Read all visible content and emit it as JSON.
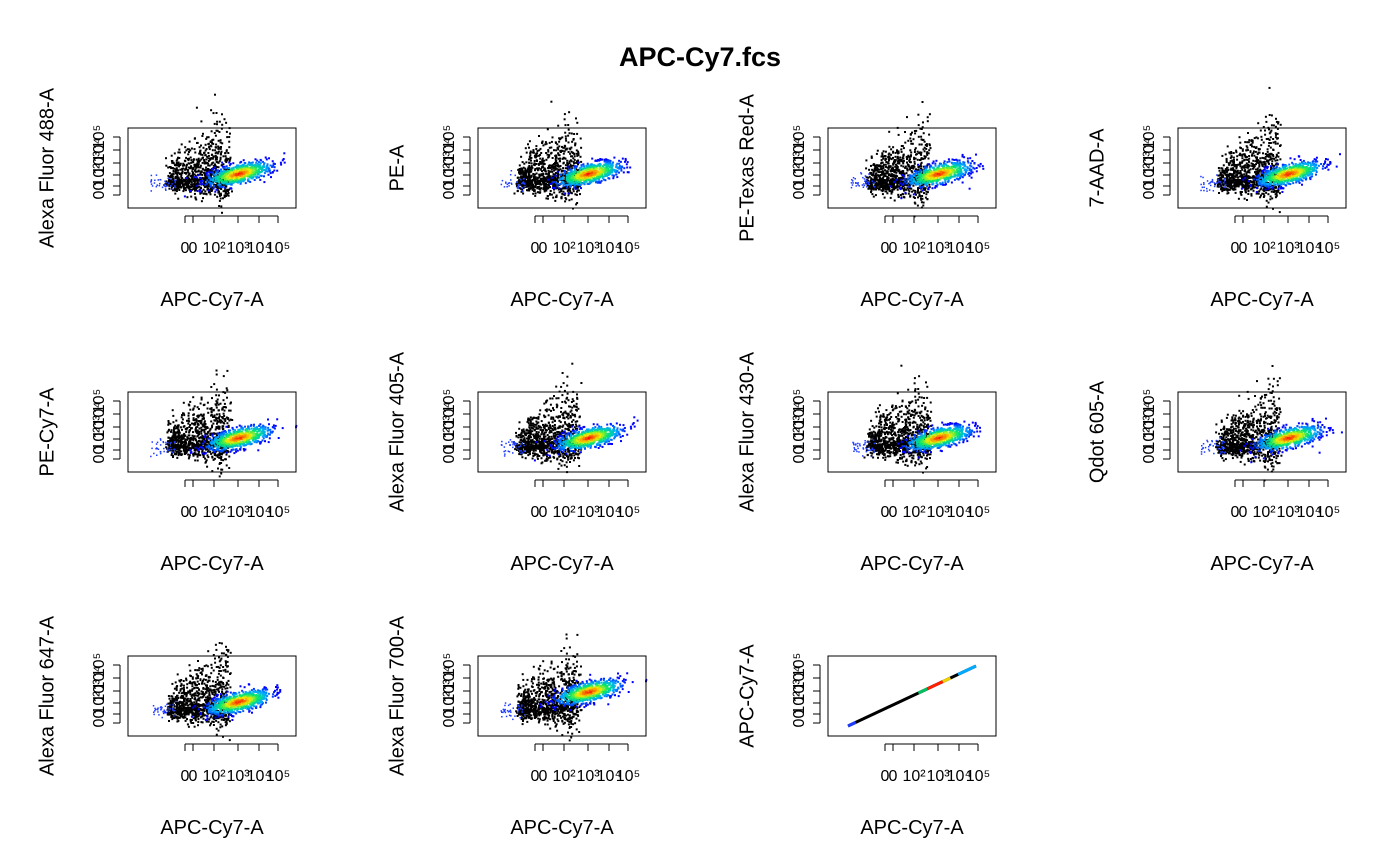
{
  "title": "APC-Cy7.fcs",
  "chart_data": [
    {
      "type": "scatter",
      "subtype": "density",
      "xlabel": "APC-Cy7-A",
      "ylabel": "Alexa Fluor 488-A",
      "x_tick_labels": [
        "0",
        "0",
        "10²",
        "10³",
        "10⁴",
        "10⁵"
      ],
      "y_tick_labels": [
        "0",
        "0",
        "10²",
        "10³",
        "10⁴",
        "10⁵"
      ],
      "x_scale": "logicle",
      "y_scale": "logicle",
      "negative_cluster": {
        "x": [
          10,
          3000
        ],
        "y": [
          -150,
          400
        ],
        "color": "#000000"
      },
      "positive_cluster": {
        "x_center": 8000,
        "y_center": 150,
        "color_scale": [
          "#0000ff",
          "#00aaff",
          "#00ff66",
          "#ffff00",
          "#ff0000"
        ]
      }
    },
    {
      "type": "scatter",
      "subtype": "density",
      "xlabel": "APC-Cy7-A",
      "ylabel": "PE-A",
      "x_tick_labels": [
        "0",
        "0",
        "10²",
        "10³",
        "10⁴",
        "10⁵"
      ],
      "y_tick_labels": [
        "0",
        "0",
        "10²",
        "10³",
        "10⁴",
        "10⁵"
      ],
      "x_scale": "logicle",
      "y_scale": "logicle",
      "negative_cluster": {
        "x": [
          10,
          3000
        ],
        "y": [
          -150,
          400
        ],
        "color": "#000000"
      },
      "positive_cluster": {
        "x_center": 8000,
        "y_center": 150,
        "color_scale": [
          "#0000ff",
          "#00aaff",
          "#00ff66",
          "#ffff00",
          "#ff0000"
        ]
      }
    },
    {
      "type": "scatter",
      "subtype": "density",
      "xlabel": "APC-Cy7-A",
      "ylabel": "PE-Texas Red-A",
      "x_tick_labels": [
        "0",
        "0",
        "10²",
        "10³",
        "10⁴",
        "10⁵"
      ],
      "y_tick_labels": [
        "0",
        "0",
        "10²",
        "10³",
        "10⁴",
        "10⁵"
      ],
      "x_scale": "logicle",
      "y_scale": "logicle",
      "negative_cluster": {
        "x": [
          10,
          3000
        ],
        "y": [
          -150,
          400
        ],
        "color": "#000000"
      },
      "positive_cluster": {
        "x_center": 8000,
        "y_center": 120,
        "color_scale": [
          "#0000ff",
          "#00aaff",
          "#00ff66",
          "#ffff00",
          "#ff0000"
        ]
      }
    },
    {
      "type": "scatter",
      "subtype": "density",
      "xlabel": "APC-Cy7-A",
      "ylabel": "7-AAD-A",
      "x_tick_labels": [
        "0",
        "0",
        "10²",
        "10³",
        "10⁴",
        "10⁵"
      ],
      "y_tick_labels": [
        "0",
        "0",
        "10²",
        "10³",
        "10⁴",
        "10⁵"
      ],
      "x_scale": "logicle",
      "y_scale": "logicle",
      "negative_cluster": {
        "x": [
          10,
          3000
        ],
        "y": [
          -150,
          500
        ],
        "color": "#000000"
      },
      "positive_cluster": {
        "x_center": 8000,
        "y_center": 150,
        "color_scale": [
          "#0000ff",
          "#00aaff",
          "#00ff66",
          "#ffff00",
          "#ff0000"
        ]
      }
    },
    {
      "type": "scatter",
      "subtype": "density",
      "xlabel": "APC-Cy7-A",
      "ylabel": "PE-Cy7-A",
      "x_tick_labels": [
        "0",
        "0",
        "10²",
        "10³",
        "10⁴",
        "10⁵"
      ],
      "y_tick_labels": [
        "0",
        "0",
        "10²",
        "10³",
        "10⁴",
        "10⁵"
      ],
      "x_scale": "logicle",
      "y_scale": "logicle",
      "negative_cluster": {
        "x": [
          10,
          3000
        ],
        "y": [
          -150,
          400
        ],
        "color": "#000000"
      },
      "positive_cluster": {
        "x_center": 8000,
        "y_center": 150,
        "color_scale": [
          "#0000ff",
          "#00aaff",
          "#00ff66",
          "#ffff00",
          "#ff0000"
        ]
      }
    },
    {
      "type": "scatter",
      "subtype": "density",
      "xlabel": "APC-Cy7-A",
      "ylabel": "Alexa Fluor 405-A",
      "x_tick_labels": [
        "0",
        "0",
        "10²",
        "10³",
        "10⁴",
        "10⁵"
      ],
      "y_tick_labels": [
        "0",
        "0",
        "10²",
        "10³",
        "10⁴",
        "10⁵"
      ],
      "x_scale": "logicle",
      "y_scale": "logicle",
      "negative_cluster": {
        "x": [
          10,
          3000
        ],
        "y": [
          -150,
          500
        ],
        "color": "#000000"
      },
      "positive_cluster": {
        "x_center": 8000,
        "y_center": 150,
        "color_scale": [
          "#0000ff",
          "#00aaff",
          "#00ff66",
          "#ffff00",
          "#ff0000"
        ]
      }
    },
    {
      "type": "scatter",
      "subtype": "density",
      "xlabel": "APC-Cy7-A",
      "ylabel": "Alexa Fluor 430-A",
      "x_tick_labels": [
        "0",
        "0",
        "10²",
        "10³",
        "10⁴",
        "10⁵"
      ],
      "y_tick_labels": [
        "0",
        "0",
        "10²",
        "10³",
        "10⁴",
        "10⁵"
      ],
      "x_scale": "logicle",
      "y_scale": "logicle",
      "negative_cluster": {
        "x": [
          10,
          3000
        ],
        "y": [
          -150,
          400
        ],
        "color": "#000000"
      },
      "positive_cluster": {
        "x_center": 8000,
        "y_center": 120,
        "color_scale": [
          "#0000ff",
          "#00aaff",
          "#00ff66",
          "#ffff00",
          "#ff0000"
        ]
      }
    },
    {
      "type": "scatter",
      "subtype": "density",
      "xlabel": "APC-Cy7-A",
      "ylabel": "Qdot 605-A",
      "x_tick_labels": [
        "0",
        "0",
        "10²",
        "10³",
        "10⁴",
        "10⁵"
      ],
      "y_tick_labels": [
        "0",
        "0",
        "10²",
        "10³",
        "10⁴",
        "10⁵"
      ],
      "x_scale": "logicle",
      "y_scale": "logicle",
      "negative_cluster": {
        "x": [
          10,
          3000
        ],
        "y": [
          -150,
          500
        ],
        "color": "#000000"
      },
      "positive_cluster": {
        "x_center": 8000,
        "y_center": 200,
        "color_scale": [
          "#0000ff",
          "#00aaff",
          "#00ff66",
          "#ffff00",
          "#ff0000"
        ]
      }
    },
    {
      "type": "scatter",
      "subtype": "density",
      "xlabel": "APC-Cy7-A",
      "ylabel": "Alexa Fluor 647-A",
      "x_tick_labels": [
        "0",
        "0",
        "10²",
        "10³",
        "10⁴",
        "10⁵"
      ],
      "y_tick_labels": [
        "0",
        "0",
        "10²",
        "10³",
        "10⁴",
        "10⁵"
      ],
      "x_scale": "logicle",
      "y_scale": "logicle",
      "negative_cluster": {
        "x": [
          10,
          3000
        ],
        "y": [
          -150,
          400
        ],
        "color": "#000000"
      },
      "positive_cluster": {
        "x_center": 8000,
        "y_center": 200,
        "color_scale": [
          "#0000ff",
          "#00aaff",
          "#00ff66",
          "#ffff00",
          "#ff0000"
        ]
      }
    },
    {
      "type": "scatter",
      "subtype": "density",
      "xlabel": "APC-Cy7-A",
      "ylabel": "Alexa Fluor 700-A",
      "x_tick_labels": [
        "0",
        "0",
        "10²",
        "10³",
        "10⁴",
        "10⁵"
      ],
      "y_tick_labels": [
        "0",
        "0",
        "10²",
        "10³",
        "10⁴",
        "10⁵"
      ],
      "x_scale": "logicle",
      "y_scale": "logicle",
      "negative_cluster": {
        "x": [
          10,
          3000
        ],
        "y": [
          -150,
          400
        ],
        "color": "#000000"
      },
      "positive_cluster": {
        "x_center": 12000,
        "y_center": 1500,
        "color_scale": [
          "#0000ff",
          "#00aaff",
          "#00ff66",
          "#ffff00",
          "#ff0000"
        ]
      }
    },
    {
      "type": "scatter",
      "subtype": "density",
      "xlabel": "APC-Cy7-A",
      "ylabel": "APC-Cy7-A",
      "x_tick_labels": [
        "0",
        "0",
        "10²",
        "10³",
        "10⁴",
        "10⁵"
      ],
      "y_tick_labels": [
        "0",
        "0",
        "10²",
        "10³",
        "10⁴",
        "10⁵"
      ],
      "x_scale": "logicle",
      "y_scale": "logicle",
      "diagonal": true,
      "negative_cluster": {
        "x": [
          -100,
          3000
        ],
        "y": [
          -100,
          3000
        ],
        "color": "#000000"
      },
      "positive_cluster": {
        "x_center": 8000,
        "y_center": 8000,
        "color_scale": [
          "#0000ff",
          "#00aaff",
          "#00ff66",
          "#ffff00",
          "#ff0000"
        ]
      }
    }
  ]
}
